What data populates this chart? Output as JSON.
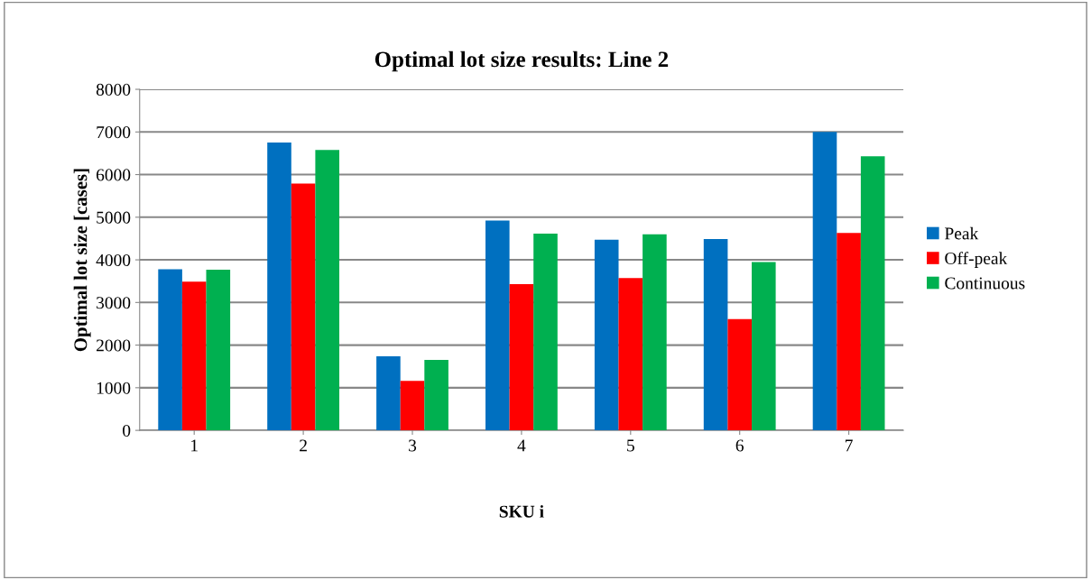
{
  "chart_data": {
    "type": "bar",
    "title": "Optimal lot size results: Line 2",
    "xlabel": "SKU i",
    "ylabel": "Optimal lot size [cases]",
    "categories": [
      "1",
      "2",
      "3",
      "4",
      "5",
      "6",
      "7"
    ],
    "series": [
      {
        "name": "Peak",
        "color": "#0070c0",
        "values": [
          3780,
          6750,
          1735,
          4920,
          4470,
          4490,
          7000
        ]
      },
      {
        "name": "Off-peak",
        "color": "#ff0000",
        "values": [
          3490,
          5790,
          1160,
          3430,
          3575,
          2610,
          4630
        ]
      },
      {
        "name": "Continuous",
        "color": "#00b050",
        "values": [
          3770,
          6580,
          1655,
          4615,
          4600,
          3950,
          6430
        ]
      }
    ],
    "ylim": [
      0,
      8000
    ],
    "yticks": [
      0,
      1000,
      2000,
      3000,
      4000,
      5000,
      6000,
      7000,
      8000
    ],
    "grid": "y",
    "legend": "right"
  }
}
